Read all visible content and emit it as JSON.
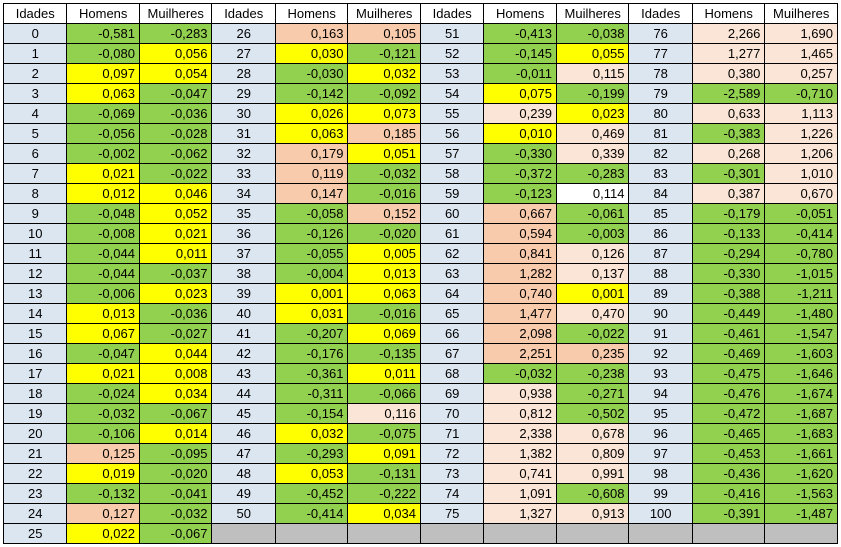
{
  "header": [
    "Idades",
    "Homens",
    "Muilheres"
  ],
  "colors": {
    "g": "#92d050",
    "y": "#ffff00",
    "o": "#f8cbad",
    "p": "#fbe5d6",
    "w": "#ffffff",
    "age_bg": "#dce6f1",
    "empty_bg": "#bfbfbf",
    "border": "#000000"
  },
  "groups": [
    {
      "rows": [
        [
          "0",
          "-0,581",
          "g",
          "-0,283",
          "g"
        ],
        [
          "1",
          "-0,080",
          "g",
          "0,056",
          "y"
        ],
        [
          "2",
          "0,097",
          "y",
          "0,054",
          "y"
        ],
        [
          "3",
          "0,063",
          "y",
          "-0,047",
          "g"
        ],
        [
          "4",
          "-0,069",
          "g",
          "-0,036",
          "g"
        ],
        [
          "5",
          "-0,056",
          "g",
          "-0,028",
          "g"
        ],
        [
          "6",
          "-0,002",
          "g",
          "-0,062",
          "g"
        ],
        [
          "7",
          "0,021",
          "y",
          "-0,022",
          "g"
        ],
        [
          "8",
          "0,012",
          "y",
          "0,046",
          "y"
        ],
        [
          "9",
          "-0,048",
          "g",
          "0,052",
          "y"
        ],
        [
          "10",
          "-0,008",
          "g",
          "0,021",
          "y"
        ],
        [
          "11",
          "-0,044",
          "g",
          "0,011",
          "y"
        ],
        [
          "12",
          "-0,044",
          "g",
          "-0,037",
          "g"
        ],
        [
          "13",
          "-0,006",
          "g",
          "0,023",
          "y"
        ],
        [
          "14",
          "0,013",
          "y",
          "-0,036",
          "g"
        ],
        [
          "15",
          "0,067",
          "y",
          "-0,027",
          "g"
        ],
        [
          "16",
          "-0,047",
          "g",
          "0,044",
          "y"
        ],
        [
          "17",
          "0,021",
          "y",
          "0,008",
          "y"
        ],
        [
          "18",
          "-0,024",
          "g",
          "0,034",
          "y"
        ],
        [
          "19",
          "-0,032",
          "g",
          "-0,067",
          "g"
        ],
        [
          "20",
          "-0,106",
          "g",
          "0,014",
          "y"
        ],
        [
          "21",
          "0,125",
          "o",
          "-0,095",
          "g"
        ],
        [
          "22",
          "0,019",
          "y",
          "-0,020",
          "g"
        ],
        [
          "23",
          "-0,132",
          "g",
          "-0,041",
          "g"
        ],
        [
          "24",
          "0,127",
          "o",
          "-0,032",
          "g"
        ],
        [
          "25",
          "0,022",
          "y",
          "-0,067",
          "g"
        ]
      ]
    },
    {
      "rows": [
        [
          "26",
          "0,163",
          "o",
          "0,105",
          "o"
        ],
        [
          "27",
          "0,030",
          "y",
          "-0,121",
          "g"
        ],
        [
          "28",
          "-0,030",
          "g",
          "0,032",
          "y"
        ],
        [
          "29",
          "-0,142",
          "g",
          "-0,092",
          "g"
        ],
        [
          "30",
          "0,026",
          "y",
          "0,073",
          "y"
        ],
        [
          "31",
          "0,063",
          "y",
          "0,185",
          "o"
        ],
        [
          "32",
          "0,179",
          "o",
          "0,051",
          "y"
        ],
        [
          "33",
          "0,119",
          "o",
          "-0,032",
          "g"
        ],
        [
          "34",
          "0,147",
          "o",
          "-0,016",
          "g"
        ],
        [
          "35",
          "-0,058",
          "g",
          "0,152",
          "o"
        ],
        [
          "36",
          "-0,126",
          "g",
          "-0,020",
          "g"
        ],
        [
          "37",
          "-0,055",
          "g",
          "0,005",
          "y"
        ],
        [
          "38",
          "-0,004",
          "g",
          "0,013",
          "y"
        ],
        [
          "39",
          "0,001",
          "y",
          "0,063",
          "y"
        ],
        [
          "40",
          "0,031",
          "y",
          "-0,016",
          "g"
        ],
        [
          "41",
          "-0,207",
          "g",
          "0,069",
          "y"
        ],
        [
          "42",
          "-0,176",
          "g",
          "-0,135",
          "g"
        ],
        [
          "43",
          "-0,361",
          "g",
          "0,011",
          "y"
        ],
        [
          "44",
          "-0,311",
          "g",
          "-0,066",
          "g"
        ],
        [
          "45",
          "-0,154",
          "g",
          "0,116",
          "p"
        ],
        [
          "46",
          "0,032",
          "y",
          "-0,075",
          "g"
        ],
        [
          "47",
          "-0,293",
          "g",
          "0,091",
          "y"
        ],
        [
          "48",
          "0,053",
          "y",
          "-0,131",
          "g"
        ],
        [
          "49",
          "-0,452",
          "g",
          "-0,222",
          "g"
        ],
        [
          "50",
          "-0,414",
          "g",
          "0,034",
          "y"
        ]
      ]
    },
    {
      "rows": [
        [
          "51",
          "-0,413",
          "g",
          "-0,038",
          "g"
        ],
        [
          "52",
          "-0,145",
          "g",
          "0,055",
          "y"
        ],
        [
          "53",
          "-0,011",
          "g",
          "0,115",
          "p"
        ],
        [
          "54",
          "0,075",
          "y",
          "-0,199",
          "g"
        ],
        [
          "55",
          "0,239",
          "p",
          "0,023",
          "y"
        ],
        [
          "56",
          "0,010",
          "y",
          "0,469",
          "p"
        ],
        [
          "57",
          "-0,330",
          "g",
          "0,339",
          "p"
        ],
        [
          "58",
          "-0,372",
          "g",
          "-0,283",
          "g"
        ],
        [
          "59",
          "-0,123",
          "g",
          "0,114",
          "w"
        ],
        [
          "60",
          "0,667",
          "o",
          "-0,061",
          "g"
        ],
        [
          "61",
          "0,594",
          "o",
          "-0,003",
          "g"
        ],
        [
          "62",
          "0,841",
          "o",
          "0,126",
          "p"
        ],
        [
          "63",
          "1,282",
          "o",
          "0,137",
          "p"
        ],
        [
          "64",
          "0,740",
          "o",
          "0,001",
          "y"
        ],
        [
          "65",
          "1,477",
          "o",
          "0,470",
          "p"
        ],
        [
          "66",
          "2,098",
          "o",
          "-0,022",
          "g"
        ],
        [
          "67",
          "2,251",
          "o",
          "0,235",
          "o"
        ],
        [
          "68",
          "-0,032",
          "g",
          "-0,238",
          "g"
        ],
        [
          "69",
          "0,938",
          "p",
          "-0,271",
          "g"
        ],
        [
          "70",
          "0,812",
          "p",
          "-0,502",
          "g"
        ],
        [
          "71",
          "2,338",
          "p",
          "0,678",
          "p"
        ],
        [
          "72",
          "1,382",
          "p",
          "0,809",
          "p"
        ],
        [
          "73",
          "0,741",
          "p",
          "0,991",
          "p"
        ],
        [
          "74",
          "1,091",
          "p",
          "-0,608",
          "g"
        ],
        [
          "75",
          "1,327",
          "p",
          "0,913",
          "p"
        ]
      ]
    },
    {
      "rows": [
        [
          "76",
          "2,266",
          "p",
          "1,690",
          "p"
        ],
        [
          "77",
          "1,277",
          "p",
          "1,465",
          "p"
        ],
        [
          "78",
          "0,380",
          "p",
          "0,257",
          "p"
        ],
        [
          "79",
          "-2,589",
          "g",
          "-0,710",
          "g"
        ],
        [
          "80",
          "0,633",
          "p",
          "1,113",
          "p"
        ],
        [
          "81",
          "-0,383",
          "g",
          "1,226",
          "p"
        ],
        [
          "82",
          "0,268",
          "p",
          "1,206",
          "p"
        ],
        [
          "83",
          "-0,301",
          "g",
          "1,010",
          "p"
        ],
        [
          "84",
          "0,387",
          "p",
          "0,670",
          "p"
        ],
        [
          "85",
          "-0,179",
          "g",
          "-0,051",
          "g"
        ],
        [
          "86",
          "-0,133",
          "g",
          "-0,414",
          "g"
        ],
        [
          "87",
          "-0,294",
          "g",
          "-0,780",
          "g"
        ],
        [
          "88",
          "-0,330",
          "g",
          "-1,015",
          "g"
        ],
        [
          "89",
          "-0,388",
          "g",
          "-1,211",
          "g"
        ],
        [
          "90",
          "-0,449",
          "g",
          "-1,480",
          "g"
        ],
        [
          "91",
          "-0,461",
          "g",
          "-1,547",
          "g"
        ],
        [
          "92",
          "-0,469",
          "g",
          "-1,603",
          "g"
        ],
        [
          "93",
          "-0,475",
          "g",
          "-1,646",
          "g"
        ],
        [
          "94",
          "-0,476",
          "g",
          "-1,674",
          "g"
        ],
        [
          "95",
          "-0,472",
          "g",
          "-1,687",
          "g"
        ],
        [
          "96",
          "-0,465",
          "g",
          "-1,683",
          "g"
        ],
        [
          "97",
          "-0,453",
          "g",
          "-1,661",
          "g"
        ],
        [
          "98",
          "-0,436",
          "g",
          "-1,620",
          "g"
        ],
        [
          "99",
          "-0,416",
          "g",
          "-1,563",
          "g"
        ],
        [
          "100",
          "-0,391",
          "g",
          "-1,487",
          "g"
        ]
      ]
    }
  ]
}
